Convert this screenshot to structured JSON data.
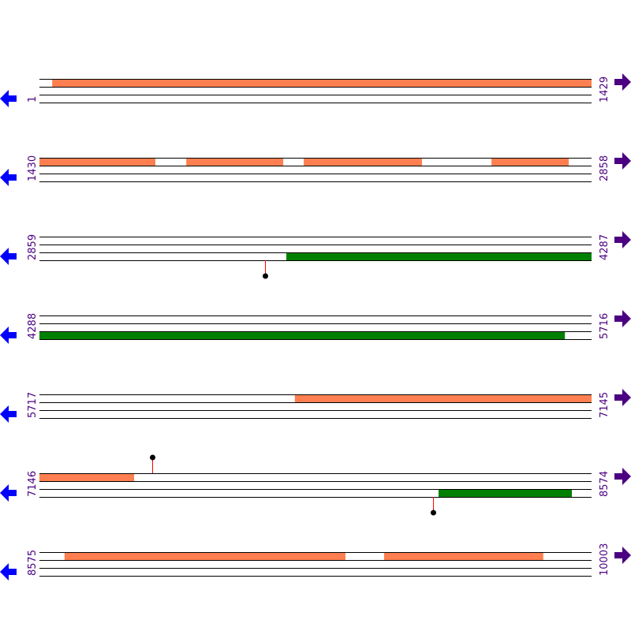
{
  "colors": {
    "orange_feature": "#ff7f50",
    "green_feature": "#008000",
    "line": "#000000",
    "left_arrow": "#0000ff",
    "right_arrow": "#4b0082",
    "label": "#4b0082",
    "stem": "#ff0000",
    "marker": "#000000"
  },
  "icons": {
    "left": "arrow-left-icon",
    "right": "arrow-right-icon"
  },
  "rows": [
    {
      "start": "1",
      "end": "1429",
      "features": [
        {
          "track": 0,
          "color": "orange",
          "from": 34,
          "to": 1429
        }
      ],
      "markers": []
    },
    {
      "start": "1430",
      "end": "2858",
      "features": [
        {
          "track": 0,
          "color": "orange",
          "from": 1430,
          "to": 1730
        },
        {
          "track": 0,
          "color": "orange",
          "from": 1810,
          "to": 2061
        },
        {
          "track": 0,
          "color": "orange",
          "from": 2114,
          "to": 2420
        },
        {
          "track": 0,
          "color": "orange",
          "from": 2600,
          "to": 2800
        }
      ],
      "markers": []
    },
    {
      "start": "2859",
      "end": "4287",
      "features": [
        {
          "track": 2,
          "color": "green",
          "from": 3498,
          "to": 4287
        }
      ],
      "markers": [
        {
          "pos": 3443,
          "direction": "down"
        }
      ]
    },
    {
      "start": "4288",
      "end": "5716",
      "features": [
        {
          "track": 2,
          "color": "green",
          "from": 4288,
          "to": 5648
        }
      ],
      "markers": []
    },
    {
      "start": "5717",
      "end": "7145",
      "features": [
        {
          "track": 0,
          "color": "orange",
          "from": 6378,
          "to": 7145
        }
      ],
      "markers": []
    },
    {
      "start": "7146",
      "end": "8574",
      "features": [
        {
          "track": 0,
          "color": "orange",
          "from": 7146,
          "to": 7391
        },
        {
          "track": 2,
          "color": "green",
          "from": 8179,
          "to": 8524
        }
      ],
      "markers": [
        {
          "pos": 7438,
          "direction": "up"
        },
        {
          "pos": 8165,
          "direction": "down"
        }
      ]
    },
    {
      "start": "8575",
      "end": "10003",
      "features": [
        {
          "track": 0,
          "color": "orange",
          "from": 8640,
          "to": 9367
        },
        {
          "track": 0,
          "color": "orange",
          "from": 9467,
          "to": 9879
        }
      ],
      "markers": []
    }
  ]
}
